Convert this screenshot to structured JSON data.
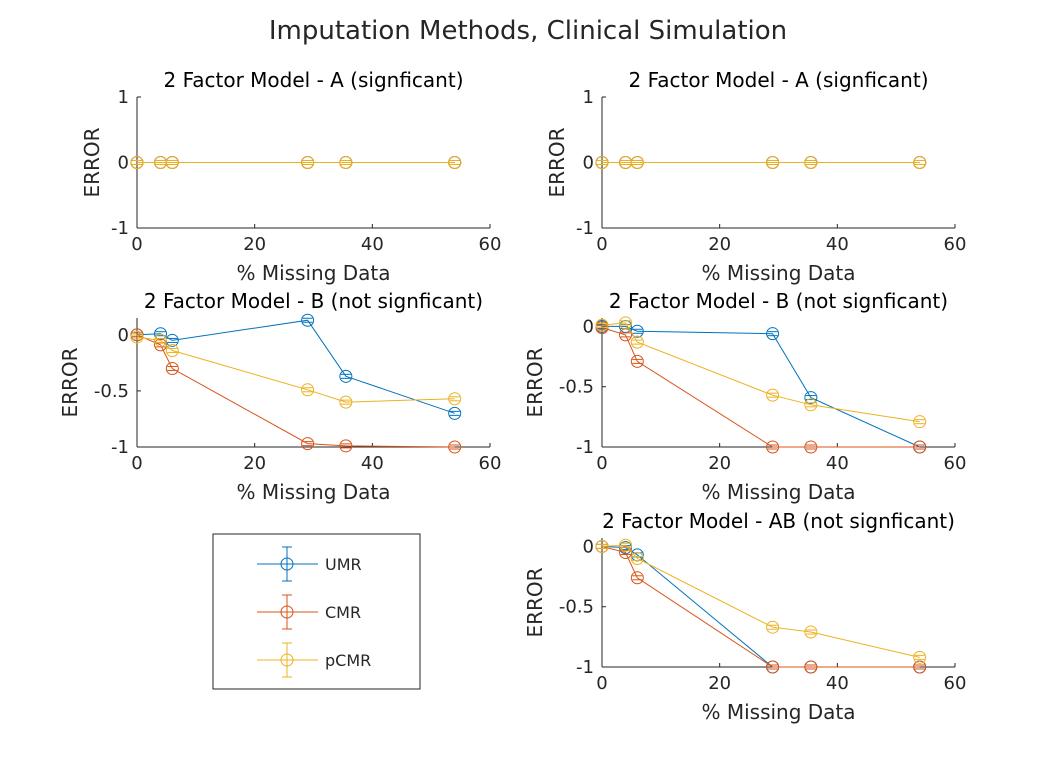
{
  "figure": {
    "title": "Imputation Methods, Clinical Simulation"
  },
  "colors": {
    "UMR": "#0072BD",
    "CMR": "#D95319",
    "pCMR": "#EDB120",
    "axis": "#262626"
  },
  "legend": {
    "placement": "bottom-left",
    "entries": [
      "UMR",
      "CMR",
      "pCMR"
    ]
  },
  "chart_data": [
    {
      "type": "line",
      "title": "2 Factor Model - A (signficant)",
      "xlabel": "% Missing Data",
      "ylabel": "ERROR",
      "xlim": [
        0,
        60
      ],
      "ylim": [
        -1,
        1
      ],
      "xticks": [
        "0",
        "20",
        "40",
        "60"
      ],
      "yticks": [
        {
          "v": 1,
          "t": "1"
        },
        {
          "v": 0,
          "t": "0"
        },
        {
          "v": -1,
          "t": "-1"
        }
      ],
      "x": [
        0,
        4,
        6,
        29,
        35.5,
        54
      ],
      "series": [
        {
          "name": "UMR",
          "values": [
            0,
            0,
            0,
            0,
            0,
            0
          ]
        },
        {
          "name": "CMR",
          "values": [
            0,
            0,
            0,
            0,
            0,
            0
          ]
        },
        {
          "name": "pCMR",
          "values": [
            0,
            0,
            0,
            0,
            0,
            0
          ]
        }
      ]
    },
    {
      "type": "line",
      "title": "2 Factor Model - A (signficant)",
      "xlabel": "% Missing Data",
      "ylabel": "ERROR",
      "xlim": [
        0,
        60
      ],
      "ylim": [
        -1,
        1
      ],
      "xticks": [
        "0",
        "20",
        "40",
        "60"
      ],
      "yticks": [
        {
          "v": 1,
          "t": "1"
        },
        {
          "v": 0,
          "t": "0"
        },
        {
          "v": -1,
          "t": "-1"
        }
      ],
      "x": [
        0,
        4,
        6,
        29,
        35.5,
        54
      ],
      "series": [
        {
          "name": "UMR",
          "values": [
            0,
            0,
            0,
            0,
            0,
            0
          ]
        },
        {
          "name": "CMR",
          "values": [
            0,
            0,
            0,
            0,
            0,
            0
          ]
        },
        {
          "name": "pCMR",
          "values": [
            0,
            0,
            0,
            0,
            0,
            0
          ]
        }
      ]
    },
    {
      "type": "line",
      "title": "2 Factor Model - B (not signficant)",
      "xlabel": "% Missing Data",
      "ylabel": "ERROR",
      "xlim": [
        0,
        60
      ],
      "ylim": [
        -1,
        0.15
      ],
      "xticks": [
        "0",
        "20",
        "40",
        "60"
      ],
      "yticks": [
        {
          "v": 0,
          "t": "0"
        },
        {
          "v": -0.5,
          "t": "-0.5"
        },
        {
          "v": -1,
          "t": "-1"
        }
      ],
      "x": [
        0,
        4,
        6,
        29,
        35.5,
        54
      ],
      "series": [
        {
          "name": "UMR",
          "values": [
            0,
            0.01,
            -0.05,
            0.13,
            -0.37,
            -0.7
          ]
        },
        {
          "name": "CMR",
          "values": [
            0,
            -0.09,
            -0.3,
            -0.97,
            -0.99,
            -1
          ]
        },
        {
          "name": "pCMR",
          "values": [
            -0.02,
            -0.05,
            -0.14,
            -0.49,
            -0.6,
            -0.57
          ]
        }
      ]
    },
    {
      "type": "line",
      "title": "2 Factor Model - B (not signficant)",
      "xlabel": "% Missing Data",
      "ylabel": "ERROR",
      "xlim": [
        0,
        60
      ],
      "ylim": [
        -1,
        0.07
      ],
      "xticks": [
        "0",
        "20",
        "40",
        "60"
      ],
      "yticks": [
        {
          "v": 0,
          "t": "0"
        },
        {
          "v": -0.5,
          "t": "-0.5"
        },
        {
          "v": -1,
          "t": "-1"
        }
      ],
      "x": [
        0,
        4,
        6,
        29,
        35.5,
        54
      ],
      "series": [
        {
          "name": "UMR",
          "values": [
            0,
            0,
            -0.04,
            -0.06,
            -0.59,
            -1
          ]
        },
        {
          "name": "CMR",
          "values": [
            -0.01,
            -0.07,
            -0.29,
            -1,
            -1,
            -1
          ]
        },
        {
          "name": "pCMR",
          "values": [
            0.01,
            0.03,
            -0.13,
            -0.57,
            -0.65,
            -0.79
          ]
        }
      ]
    },
    {
      "type": "line",
      "title": "2 Factor Model - AB (not signficant)",
      "xlabel": "% Missing Data",
      "ylabel": "ERROR",
      "xlim": [
        0,
        60
      ],
      "ylim": [
        -1,
        0.07
      ],
      "xticks": [
        "0",
        "20",
        "40",
        "60"
      ],
      "yticks": [
        {
          "v": 0,
          "t": "0"
        },
        {
          "v": -0.5,
          "t": "-0.5"
        },
        {
          "v": -1,
          "t": "-1"
        }
      ],
      "x": [
        0,
        4,
        6,
        29,
        35.5,
        54
      ],
      "series": [
        {
          "name": "UMR",
          "values": [
            0,
            -0.01,
            -0.07,
            -1,
            -1,
            -1
          ]
        },
        {
          "name": "CMR",
          "values": [
            0,
            -0.05,
            -0.26,
            -1,
            -1,
            -1
          ]
        },
        {
          "name": "pCMR",
          "values": [
            0,
            0.01,
            -0.1,
            -0.67,
            -0.71,
            -0.92
          ]
        }
      ]
    }
  ]
}
